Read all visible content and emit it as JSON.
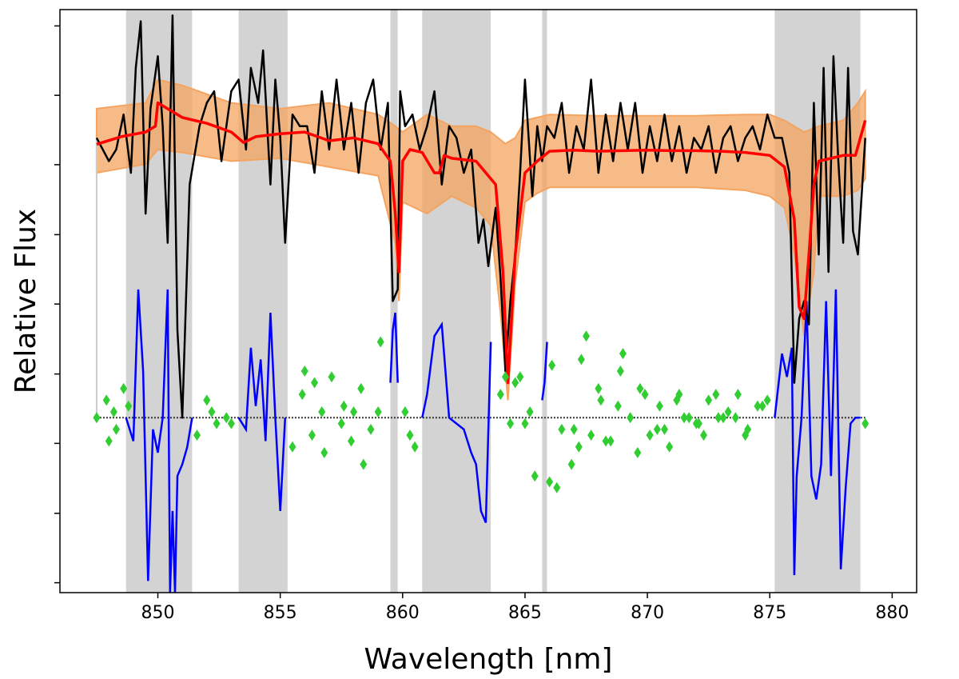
{
  "chart_data": {
    "type": "line",
    "title": "",
    "xlabel": "Wavelength [nm]",
    "ylabel": "Relative Flux",
    "xlim": [
      846.0,
      881.0
    ],
    "ylim": [
      0.0,
      1.0
    ],
    "grid": false,
    "legend": "none",
    "x_ticks": [
      850,
      855,
      860,
      865,
      870,
      875,
      880
    ],
    "x_tick_labels": [
      "850",
      "855",
      "860",
      "865",
      "870",
      "875",
      "880"
    ],
    "y_ticks": [
      0.017,
      0.136,
      0.256,
      0.375,
      0.495,
      0.614,
      0.734,
      0.853,
      0.972
    ],
    "masked_regions": [
      [
        848.7,
        851.4
      ],
      [
        853.3,
        855.3
      ],
      [
        859.5,
        859.8
      ],
      [
        860.8,
        863.6
      ],
      [
        865.7,
        865.9
      ],
      [
        875.2,
        878.7
      ]
    ],
    "series": [
      {
        "role": "observed",
        "color": "#000000",
        "x": [
          847.5,
          848.0,
          848.3,
          848.6,
          848.9,
          849.1,
          849.3,
          849.5,
          849.7,
          850.0,
          850.2,
          850.4,
          850.6,
          850.8,
          851.0,
          851.3,
          851.7,
          852.0,
          852.3,
          852.6,
          853.0,
          853.3,
          853.6,
          853.8,
          854.1,
          854.3,
          854.6,
          854.8,
          855.0,
          855.2,
          855.5,
          855.8,
          856.1,
          856.4,
          856.7,
          857.0,
          857.3,
          857.6,
          857.9,
          858.2,
          858.5,
          858.8,
          859.1,
          859.4,
          859.6,
          859.8,
          859.9,
          860.1,
          860.4,
          860.7,
          861.0,
          861.3,
          861.6,
          861.9,
          862.2,
          862.5,
          862.8,
          863.1,
          863.3,
          863.5,
          863.8,
          864.0,
          864.2,
          864.4,
          864.6,
          864.8,
          865.0,
          865.3,
          865.5,
          865.7,
          865.9,
          866.2,
          866.5,
          866.8,
          867.1,
          867.4,
          867.7,
          868.0,
          868.3,
          868.6,
          868.9,
          869.2,
          869.5,
          869.8,
          870.1,
          870.4,
          870.7,
          871.0,
          871.3,
          871.6,
          871.9,
          872.2,
          872.5,
          872.8,
          873.1,
          873.4,
          873.7,
          874.0,
          874.3,
          874.6,
          874.9,
          875.2,
          875.5,
          875.8,
          876.0,
          876.2,
          876.4,
          876.6,
          876.8,
          877.0,
          877.2,
          877.4,
          877.6,
          877.8,
          878.0,
          878.2,
          878.4,
          878.6,
          878.9
        ],
        "y": [
          0.78,
          0.74,
          0.76,
          0.82,
          0.72,
          0.9,
          0.98,
          0.65,
          0.83,
          0.92,
          0.8,
          0.6,
          0.99,
          0.45,
          0.3,
          0.7,
          0.8,
          0.84,
          0.86,
          0.74,
          0.86,
          0.88,
          0.76,
          0.9,
          0.84,
          0.93,
          0.7,
          0.88,
          0.78,
          0.6,
          0.82,
          0.8,
          0.8,
          0.72,
          0.86,
          0.76,
          0.88,
          0.76,
          0.84,
          0.72,
          0.84,
          0.88,
          0.76,
          0.84,
          0.5,
          0.52,
          0.86,
          0.8,
          0.82,
          0.76,
          0.8,
          0.86,
          0.7,
          0.8,
          0.78,
          0.72,
          0.76,
          0.6,
          0.64,
          0.56,
          0.66,
          0.54,
          0.38,
          0.5,
          0.58,
          0.72,
          0.88,
          0.68,
          0.8,
          0.74,
          0.8,
          0.78,
          0.84,
          0.72,
          0.8,
          0.76,
          0.88,
          0.72,
          0.82,
          0.74,
          0.84,
          0.76,
          0.84,
          0.72,
          0.8,
          0.74,
          0.82,
          0.74,
          0.8,
          0.72,
          0.78,
          0.76,
          0.8,
          0.72,
          0.78,
          0.8,
          0.74,
          0.78,
          0.8,
          0.76,
          0.82,
          0.78,
          0.78,
          0.72,
          0.36,
          0.47,
          0.5,
          0.46,
          0.84,
          0.58,
          0.9,
          0.55,
          0.92,
          0.74,
          0.6,
          0.9,
          0.62,
          0.58,
          0.78
        ]
      },
      {
        "role": "model",
        "color": "#ff0000",
        "x": [
          847.5,
          848.5,
          849.5,
          849.9,
          850.0,
          851.0,
          852.0,
          853.0,
          853.5,
          854.0,
          855.0,
          856.0,
          857.0,
          858.0,
          859.0,
          859.5,
          859.7,
          859.85,
          860.0,
          860.3,
          860.8,
          861.3,
          861.5,
          861.7,
          862.0,
          863.0,
          863.8,
          864.1,
          864.3,
          864.6,
          865.0,
          865.5,
          866.0,
          867.0,
          868.0,
          869.0,
          870.0,
          871.0,
          872.0,
          873.0,
          874.0,
          875.0,
          875.6,
          876.0,
          876.2,
          876.4,
          876.6,
          876.8,
          877.0,
          877.5,
          878.0,
          878.5,
          878.9
        ],
        "y": [
          0.769,
          0.782,
          0.79,
          0.8,
          0.84,
          0.815,
          0.805,
          0.79,
          0.772,
          0.782,
          0.787,
          0.79,
          0.775,
          0.78,
          0.77,
          0.74,
          0.65,
          0.55,
          0.74,
          0.76,
          0.755,
          0.72,
          0.72,
          0.75,
          0.745,
          0.74,
          0.7,
          0.55,
          0.36,
          0.58,
          0.72,
          0.74,
          0.757,
          0.759,
          0.757,
          0.758,
          0.759,
          0.758,
          0.758,
          0.757,
          0.755,
          0.75,
          0.73,
          0.64,
          0.49,
          0.47,
          0.58,
          0.7,
          0.74,
          0.745,
          0.75,
          0.75,
          0.81
        ]
      },
      {
        "role": "model_band_upper",
        "color": "#f4a460",
        "x": [
          847.5,
          849.5,
          850.0,
          851.0,
          853.0,
          855.0,
          857.0,
          859.0,
          859.7,
          860.0,
          861.0,
          862.0,
          863.0,
          863.6,
          864.2,
          864.6,
          865.0,
          865.5,
          866.0,
          868.0,
          870.0,
          872.0,
          874.0,
          875.0,
          875.6,
          876.4,
          877.0,
          878.0,
          878.6,
          878.9
        ],
        "y": [
          0.83,
          0.84,
          0.88,
          0.87,
          0.84,
          0.83,
          0.84,
          0.82,
          0.8,
          0.79,
          0.82,
          0.8,
          0.8,
          0.79,
          0.77,
          0.78,
          0.81,
          0.815,
          0.82,
          0.818,
          0.818,
          0.818,
          0.82,
          0.82,
          0.81,
          0.79,
          0.8,
          0.81,
          0.84,
          0.86
        ]
      },
      {
        "role": "model_band_lower",
        "color": "#f4a460",
        "x": [
          847.5,
          849.5,
          850.0,
          851.0,
          853.0,
          855.0,
          857.0,
          859.0,
          859.7,
          859.85,
          860.0,
          861.0,
          862.0,
          863.0,
          863.6,
          864.0,
          864.3,
          864.6,
          865.0,
          865.5,
          866.0,
          868.0,
          870.0,
          872.0,
          874.0,
          875.0,
          875.6,
          876.0,
          876.4,
          876.8,
          877.0,
          878.0,
          878.6,
          878.9
        ],
        "y": [
          0.72,
          0.735,
          0.76,
          0.755,
          0.74,
          0.745,
          0.73,
          0.715,
          0.6,
          0.5,
          0.67,
          0.65,
          0.68,
          0.66,
          0.63,
          0.48,
          0.33,
          0.53,
          0.67,
          0.685,
          0.695,
          0.695,
          0.695,
          0.695,
          0.69,
          0.68,
          0.66,
          0.58,
          0.44,
          0.55,
          0.68,
          0.68,
          0.69,
          0.71
        ]
      },
      {
        "role": "residual_fit",
        "color": "#0000ff",
        "x": [
          848.7,
          849.0,
          849.2,
          849.4,
          849.6,
          849.8,
          850.0,
          850.2,
          850.4,
          850.5,
          850.6,
          850.7,
          850.8,
          851.0,
          851.2,
          851.4,
          853.3,
          853.6,
          853.8,
          854.0,
          854.2,
          854.4,
          854.6,
          854.8,
          855.0,
          855.2,
          859.5,
          859.6,
          859.7,
          859.8,
          860.8,
          861.0,
          861.3,
          861.6,
          861.9,
          862.2,
          862.5,
          862.8,
          863.0,
          863.2,
          863.4,
          863.6,
          865.7,
          865.8,
          865.9,
          875.2,
          875.5,
          875.7,
          875.9,
          876.0,
          876.1,
          876.3,
          876.5,
          876.7,
          876.9,
          877.1,
          877.3,
          877.5,
          877.7,
          877.9,
          878.1,
          878.3,
          878.5,
          878.7
        ],
        "y": [
          0.3,
          0.26,
          0.52,
          0.38,
          0.02,
          0.28,
          0.24,
          0.3,
          0.52,
          0.0,
          0.14,
          0.0,
          0.2,
          0.22,
          0.25,
          0.3,
          0.3,
          0.28,
          0.42,
          0.32,
          0.4,
          0.26,
          0.48,
          0.3,
          0.14,
          0.3,
          0.36,
          0.45,
          0.48,
          0.36,
          0.3,
          0.34,
          0.44,
          0.46,
          0.3,
          0.29,
          0.28,
          0.24,
          0.22,
          0.14,
          0.12,
          0.43,
          0.33,
          0.36,
          0.43,
          0.3,
          0.41,
          0.37,
          0.42,
          0.03,
          0.2,
          0.3,
          0.5,
          0.2,
          0.16,
          0.22,
          0.5,
          0.2,
          0.52,
          0.04,
          0.18,
          0.29,
          0.3,
          0.3
        ]
      },
      {
        "role": "residual_points",
        "color": "#32cd32",
        "x": [
          847.5,
          847.9,
          848.3,
          848.6,
          851.6,
          852.0,
          852.4,
          852.8,
          855.5,
          855.9,
          856.3,
          856.7,
          857.1,
          857.5,
          857.9,
          858.3,
          858.7,
          859.1,
          860.1,
          860.5,
          864.0,
          864.4,
          864.8,
          865.2,
          866.1,
          866.5,
          866.9,
          867.3,
          867.7,
          868.1,
          868.5,
          868.9,
          869.3,
          869.7,
          870.1,
          870.5,
          870.9,
          871.3,
          871.7,
          872.1,
          872.5,
          872.9,
          873.3,
          873.7,
          874.1,
          874.5,
          874.9,
          878.9,
          848.0,
          848.8,
          852.2,
          856.0,
          856.8,
          857.6,
          858.4,
          859.0,
          860.3,
          864.6,
          865.4,
          866.3,
          867.0,
          867.5,
          868.3,
          869.0,
          869.9,
          870.7,
          871.5,
          872.3,
          873.1,
          874.0,
          874.7,
          848.2,
          853.0,
          856.4,
          858.0,
          864.2,
          865.0,
          866.0,
          867.2,
          868.0,
          868.8,
          869.6,
          870.4,
          871.2,
          872.0,
          872.8,
          873.6
        ],
        "y": [
          0.3,
          0.33,
          0.28,
          0.35,
          0.27,
          0.33,
          0.29,
          0.3,
          0.25,
          0.34,
          0.27,
          0.31,
          0.37,
          0.29,
          0.26,
          0.35,
          0.28,
          0.43,
          0.31,
          0.25,
          0.34,
          0.29,
          0.37,
          0.31,
          0.39,
          0.28,
          0.22,
          0.4,
          0.27,
          0.33,
          0.26,
          0.38,
          0.3,
          0.35,
          0.27,
          0.32,
          0.25,
          0.34,
          0.3,
          0.29,
          0.33,
          0.3,
          0.31,
          0.34,
          0.28,
          0.32,
          0.33,
          0.29,
          0.26,
          0.32,
          0.31,
          0.38,
          0.24,
          0.32,
          0.22,
          0.31,
          0.27,
          0.36,
          0.2,
          0.18,
          0.28,
          0.44,
          0.26,
          0.41,
          0.34,
          0.28,
          0.3,
          0.27,
          0.3,
          0.27,
          0.32,
          0.31,
          0.29,
          0.36,
          0.31,
          0.37,
          0.29,
          0.19,
          0.25,
          0.35,
          0.32,
          0.24,
          0.28,
          0.33,
          0.29,
          0.34,
          0.3
        ]
      },
      {
        "role": "zero_line",
        "color": "#000000",
        "x": [
          847.5,
          878.9
        ],
        "y": [
          0.3,
          0.3
        ]
      }
    ]
  }
}
